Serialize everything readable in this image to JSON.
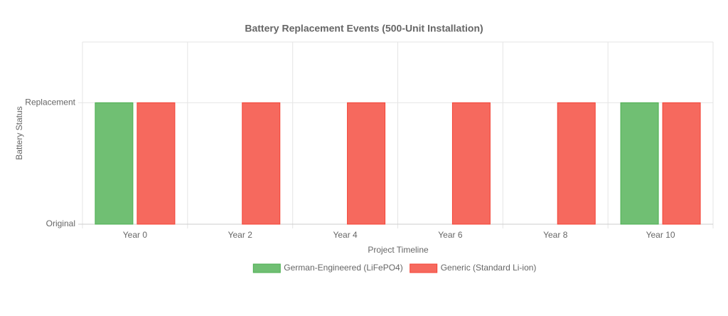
{
  "chart_data": {
    "type": "bar",
    "title": "Battery Replacement Events (500-Unit Installation)",
    "x_label": "Project Timeline",
    "y_label": "Battery Status",
    "categories": [
      "Year 0",
      "Year 2",
      "Year 4",
      "Year 6",
      "Year 8",
      "Year 10"
    ],
    "series": [
      {
        "name": "German-Engineered (LiFePO4)",
        "color": "#4caf50",
        "values": [
          1,
          0,
          0,
          0,
          0,
          1
        ]
      },
      {
        "name": "Generic (Standard Li-ion)",
        "color": "#f44336",
        "values": [
          1,
          1,
          1,
          1,
          1,
          1
        ]
      }
    ],
    "ylim": [
      0,
      1.5
    ],
    "yticks": [
      {
        "value": 0,
        "label": "Original"
      },
      {
        "value": 1,
        "label": "Replacement"
      }
    ],
    "grid": true,
    "legend": "bottom"
  }
}
